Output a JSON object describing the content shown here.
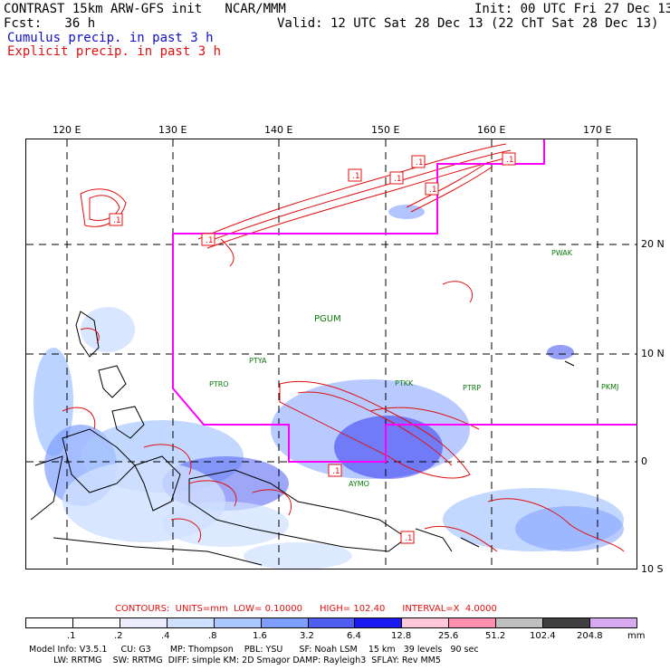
{
  "header": {
    "left_line1": "CONTRAST 15km ARW-GFS init   NCAR/MMM",
    "left_line2": "Fcst:   36 h",
    "cumulus": "Cumulus precip. in past 3 h",
    "explicit": "Explicit precip. in past 3 h",
    "right_line1": "Init: 00 UTC Fri 27 Dec 13",
    "right_line2": "Valid: 12 UTC Sat 28 Dec 13 (22 ChT Sat 28 Dec 13)"
  },
  "axes": {
    "lon_labels": [
      "120 E",
      "130 E",
      "140 E",
      "150 E",
      "160 E",
      "170 E"
    ],
    "lat_labels": [
      "20 N",
      "10 N",
      "0",
      "10 S"
    ]
  },
  "stations": [
    "PWAK",
    "PGUM",
    "PTYA",
    "PTRO",
    "PTKK",
    "PTRP",
    "PKMJ",
    "AYMO"
  ],
  "contour_markers": [
    ".1",
    ".1",
    ".1",
    ".1",
    ".1",
    ".1",
    ".1",
    ".1",
    ".1"
  ],
  "contours_line": "CONTOURS:  UNITS=mm  LOW= 0.10000      HIGH= 102.40      INTERVAL=X  4.0000",
  "colorbar": {
    "labels": [
      ".1",
      ".2",
      ".4",
      ".8",
      "1.6",
      "3.2",
      "6.4",
      "12.8",
      "25.6",
      "51.2",
      "102.4",
      "204.8"
    ],
    "unit": "mm",
    "colors": [
      "#ffffff",
      "#ffffff",
      "#ececff",
      "#cfe0ff",
      "#aac8ff",
      "#7f9fff",
      "#4e5ef0",
      "#1a1af0",
      "#ffc8d8",
      "#ff90b0",
      "#c0c0c0",
      "#404040",
      "#d8a8f0"
    ]
  },
  "footer": {
    "line1": "Model Info: V3.5.1     CU: G3       MP: Thompson    PBL: YSU      SF: Noah LSM    15 km   39 levels   90 sec",
    "line2": "         LW: RRTMG    SW: RRTMG  DIFF: simple KM: 2D Smagor DAMP: Rayleigh3  SFLAY: Rev MM5"
  },
  "colors": {
    "cumulus": "#1010c0",
    "explicit": "#e01010",
    "domain": "#ff00ff",
    "station": "#0a7a0a"
  }
}
